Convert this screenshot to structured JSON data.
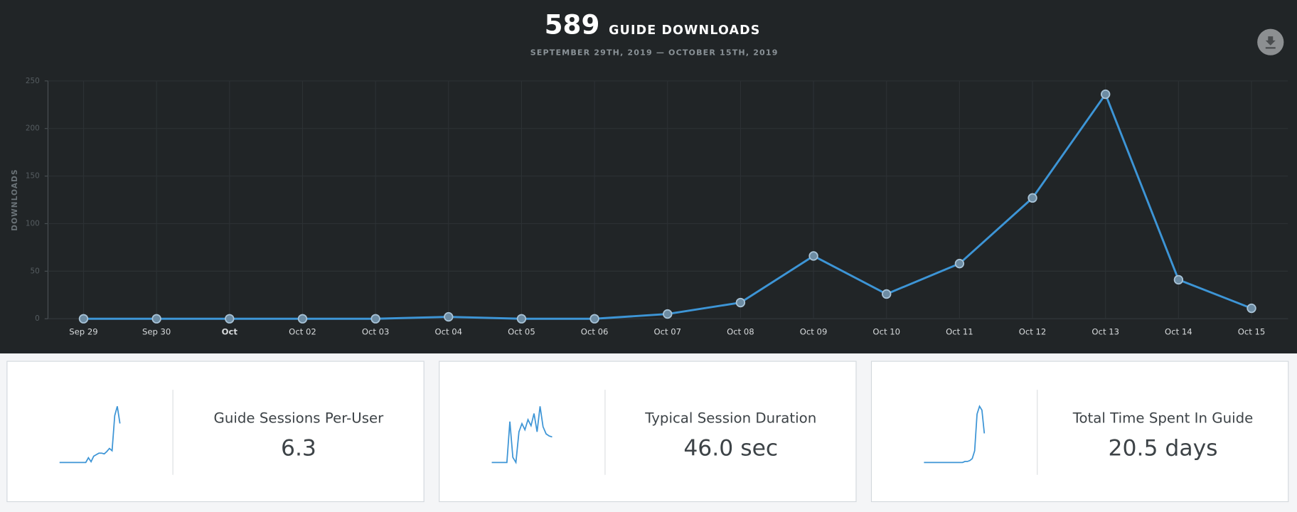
{
  "header": {
    "total": 589,
    "title": "GUIDE DOWNLOADS",
    "date_range": "SEPTEMBER 29TH, 2019 — OCTOBER 15TH, 2019"
  },
  "chart_data": {
    "type": "line",
    "y_label": "DOWNLOADS",
    "categories": [
      "Sep 29",
      "Sep 30",
      "Oct",
      "Oct 02",
      "Oct 03",
      "Oct 04",
      "Oct 05",
      "Oct 06",
      "Oct 07",
      "Oct 08",
      "Oct 09",
      "Oct 10",
      "Oct 11",
      "Oct 12",
      "Oct 13",
      "Oct 14",
      "Oct 15"
    ],
    "values": [
      0,
      0,
      0,
      0,
      0,
      2,
      0,
      0,
      5,
      17,
      66,
      26,
      58,
      127,
      236,
      41,
      11
    ],
    "color": "#3d95d6",
    "ylim": [
      0,
      250
    ],
    "yticks": [
      0,
      50,
      100,
      150,
      200,
      250
    ],
    "grid": true
  },
  "cards": [
    {
      "label": "Guide Sessions Per-User",
      "value": "6.3",
      "sparkline": [
        0,
        0,
        0,
        0,
        0,
        0,
        0,
        0,
        0,
        0,
        0,
        6,
        1,
        8,
        10,
        12,
        12,
        11,
        14,
        18,
        15,
        60,
        72,
        50
      ]
    },
    {
      "label": "Typical Session Duration",
      "value": "46.0 sec",
      "sparkline": [
        0,
        0,
        0,
        0,
        0,
        0,
        40,
        5,
        0,
        30,
        38,
        32,
        42,
        36,
        48,
        30,
        55,
        35,
        28,
        26,
        25
      ]
    },
    {
      "label": "Total Time Spent In Guide",
      "value": "20.5 days",
      "sparkline": [
        0,
        0,
        0,
        0,
        0,
        0,
        0,
        0,
        0,
        0,
        0,
        0,
        0,
        0,
        0,
        0,
        0,
        1,
        1,
        2,
        4,
        12,
        50,
        58,
        54,
        30
      ]
    }
  ]
}
